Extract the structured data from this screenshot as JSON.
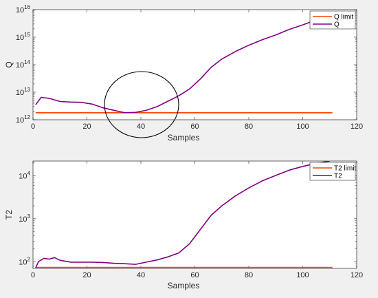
{
  "chart_data": [
    {
      "type": "line",
      "xlabel": "Samples",
      "ylabel": "Q",
      "xlim": [
        0,
        120
      ],
      "ylim": [
        1000000000000.0,
        1e+16
      ],
      "y_scale": "log",
      "x_ticks": [
        "0",
        "20",
        "40",
        "60",
        "80",
        "100",
        "120"
      ],
      "y_ticks": [
        {
          "base": "10",
          "exp": "12"
        },
        {
          "base": "10",
          "exp": "13"
        },
        {
          "base": "10",
          "exp": "14"
        },
        {
          "base": "10",
          "exp": "15"
        },
        {
          "base": "10",
          "exp": "16"
        }
      ],
      "legend_position": "top-right",
      "annotation": "circle around the point where Q meets Q limit (near sample 40)",
      "series": [
        {
          "name": "Q limit",
          "color": "#ff4500",
          "x": [
            1,
            111
          ],
          "y": [
            1800000000000.0,
            1800000000000.0
          ]
        },
        {
          "name": "Q",
          "color": "#800080",
          "x": [
            1,
            3,
            6,
            10,
            14,
            18,
            22,
            26,
            30,
            34,
            38,
            42,
            46,
            50,
            54,
            58,
            62,
            66,
            70,
            75,
            80,
            85,
            90,
            95,
            100,
            105,
            110
          ],
          "y": [
            3500000000000.0,
            6500000000000.0,
            6000000000000.0,
            4600000000000.0,
            4400000000000.0,
            4300000000000.0,
            3700000000000.0,
            2700000000000.0,
            2200000000000.0,
            1800000000000.0,
            1850000000000.0,
            2200000000000.0,
            3000000000000.0,
            4700000000000.0,
            7400000000000.0,
            13000000000000.0,
            30000000000000.0,
            80000000000000.0,
            160000000000000.0,
            300000000000000.0,
            510000000000000.0,
            810000000000000.0,
            1200000000000000.0,
            1900000000000000.0,
            2800000000000000.0,
            4200000000000000.0,
            6900000000000000.0
          ]
        }
      ]
    },
    {
      "type": "line",
      "xlabel": "Samples",
      "ylabel": "T2",
      "xlim": [
        0,
        120
      ],
      "ylim": [
        70,
        22000
      ],
      "y_scale": "log",
      "x_ticks": [
        "0",
        "20",
        "40",
        "60",
        "80",
        "100",
        "120"
      ],
      "y_ticks": [
        {
          "base": "10",
          "exp": "2"
        },
        {
          "base": "10",
          "exp": "3"
        },
        {
          "base": "10",
          "exp": "4"
        }
      ],
      "legend_position": "top-right",
      "series": [
        {
          "name": "T2 limit",
          "color": "#ff4500",
          "x": [
            1,
            111
          ],
          "y": [
            74,
            74
          ]
        },
        {
          "name": "T2",
          "color": "#800080",
          "x": [
            1,
            2,
            4,
            6,
            8,
            10,
            14,
            18,
            22,
            26,
            30,
            34,
            38,
            42,
            46,
            50,
            54,
            58,
            62,
            66,
            70,
            75,
            80,
            85,
            90,
            95,
            100,
            105,
            110
          ],
          "y": [
            72,
            100,
            120,
            115,
            125,
            108,
            98,
            98,
            98,
            96,
            92,
            90,
            87,
            98,
            110,
            130,
            160,
            260,
            560,
            1200,
            2000,
            3400,
            5200,
            7600,
            10200,
            13500,
            16500,
            19500,
            22000
          ]
        }
      ]
    }
  ]
}
